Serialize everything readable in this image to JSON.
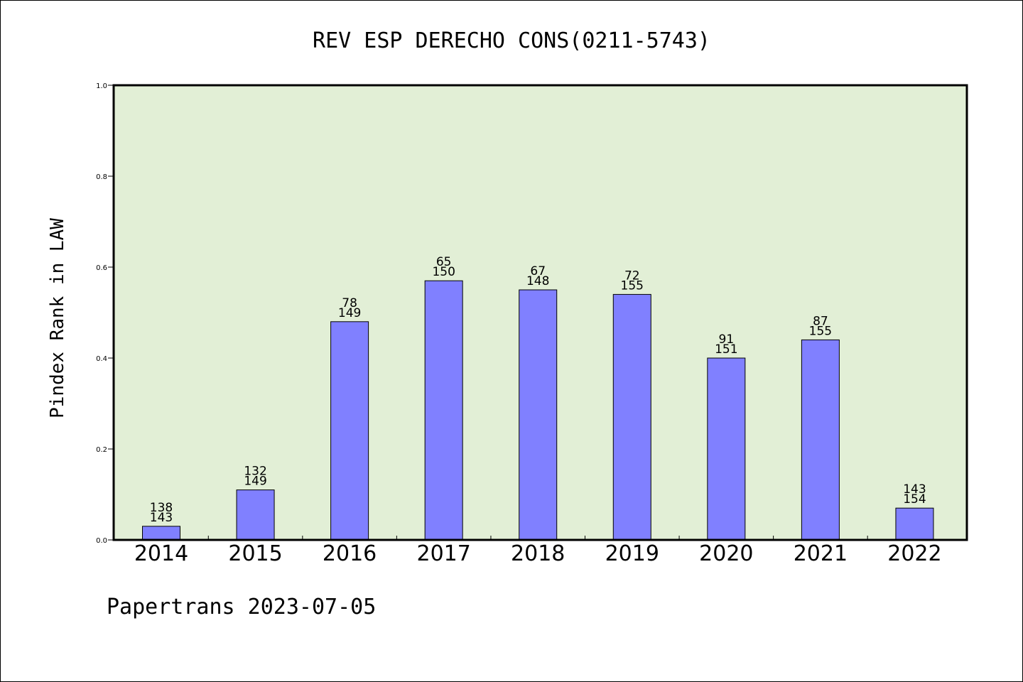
{
  "chart_data": {
    "type": "bar",
    "title": "REV ESP DERECHO CONS(0211-5743)",
    "xlabel": "",
    "ylabel": "Pindex Rank in LAW",
    "ylim": [
      0,
      1.0
    ],
    "yticks": [
      "0.0",
      "0.2",
      "0.4",
      "0.6",
      "0.8",
      "1.0"
    ],
    "grid": false,
    "colors": {
      "plot_background": "#e2efd6",
      "bar_fill": "#8080ff",
      "bar_edge": "#000000"
    },
    "categories": [
      "2014",
      "2015",
      "2016",
      "2017",
      "2018",
      "2019",
      "2020",
      "2021",
      "2022"
    ],
    "values": [
      0.03,
      0.11,
      0.48,
      0.57,
      0.55,
      0.54,
      0.4,
      0.44,
      0.07
    ],
    "annotations": [
      {
        "rank": "138",
        "total": "143"
      },
      {
        "rank": "132",
        "total": "149"
      },
      {
        "rank": "78",
        "total": "149"
      },
      {
        "rank": "65",
        "total": "150"
      },
      {
        "rank": "67",
        "total": "148"
      },
      {
        "rank": "72",
        "total": "155"
      },
      {
        "rank": "91",
        "total": "151"
      },
      {
        "rank": "87",
        "total": "155"
      },
      {
        "rank": "143",
        "total": "154"
      }
    ]
  },
  "footer": "Papertrans 2023-07-05"
}
